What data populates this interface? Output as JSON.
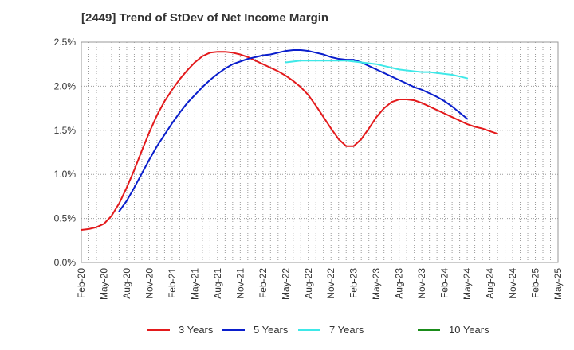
{
  "chart_data": {
    "type": "line",
    "title": "[2449]  Trend of StDev of Net Income Margin",
    "xlabel": "",
    "ylabel": "",
    "x_ticks": [
      "Feb-20",
      "May-20",
      "Aug-20",
      "Nov-20",
      "Feb-21",
      "May-21",
      "Aug-21",
      "Nov-21",
      "Feb-22",
      "May-22",
      "Aug-22",
      "Nov-22",
      "Feb-23",
      "May-23",
      "Aug-23",
      "Nov-23",
      "Feb-24",
      "May-24",
      "Aug-24",
      "Nov-24",
      "Feb-25",
      "May-25"
    ],
    "y_ticks": [
      "0.0%",
      "0.5%",
      "1.0%",
      "1.5%",
      "2.0%",
      "2.5%"
    ],
    "ylim": [
      0,
      2.5
    ],
    "grid": "dotted",
    "legend_position": "bottom",
    "series": [
      {
        "name": "3 Years",
        "color": "#e31a1c",
        "start_index": 0,
        "values": [
          0.37,
          0.38,
          0.4,
          0.44,
          0.53,
          0.67,
          0.85,
          1.05,
          1.27,
          1.48,
          1.67,
          1.83,
          1.96,
          2.08,
          2.18,
          2.27,
          2.34,
          2.38,
          2.39,
          2.39,
          2.38,
          2.36,
          2.33,
          2.29,
          2.25,
          2.21,
          2.17,
          2.12,
          2.06,
          1.99,
          1.9,
          1.78,
          1.65,
          1.52,
          1.4,
          1.32,
          1.32,
          1.4,
          1.52,
          1.65,
          1.75,
          1.82,
          1.85,
          1.85,
          1.84,
          1.81,
          1.77,
          1.73,
          1.69,
          1.65,
          1.61,
          1.57,
          1.54,
          1.52,
          1.49,
          1.46
        ]
      },
      {
        "name": "5 Years",
        "color": "#0a1ecc",
        "start_index": 5,
        "values": [
          0.58,
          0.7,
          0.85,
          1.01,
          1.17,
          1.32,
          1.45,
          1.58,
          1.7,
          1.81,
          1.9,
          1.99,
          2.07,
          2.14,
          2.2,
          2.25,
          2.28,
          2.31,
          2.33,
          2.35,
          2.36,
          2.38,
          2.4,
          2.41,
          2.41,
          2.4,
          2.38,
          2.36,
          2.33,
          2.31,
          2.3,
          2.3,
          2.27,
          2.23,
          2.19,
          2.15,
          2.11,
          2.07,
          2.03,
          1.99,
          1.96,
          1.92,
          1.88,
          1.83,
          1.77,
          1.7,
          1.63
        ]
      },
      {
        "name": "7 Years",
        "color": "#3ee8e8",
        "start_index": 27,
        "values": [
          2.27,
          2.28,
          2.29,
          2.29,
          2.29,
          2.29,
          2.29,
          2.29,
          2.29,
          2.28,
          2.27,
          2.26,
          2.25,
          2.23,
          2.21,
          2.19,
          2.18,
          2.17,
          2.16,
          2.16,
          2.15,
          2.14,
          2.13,
          2.11,
          2.09
        ]
      },
      {
        "name": "10 Years",
        "color": "#1a8c1a",
        "start_index": 0,
        "values": []
      }
    ]
  }
}
